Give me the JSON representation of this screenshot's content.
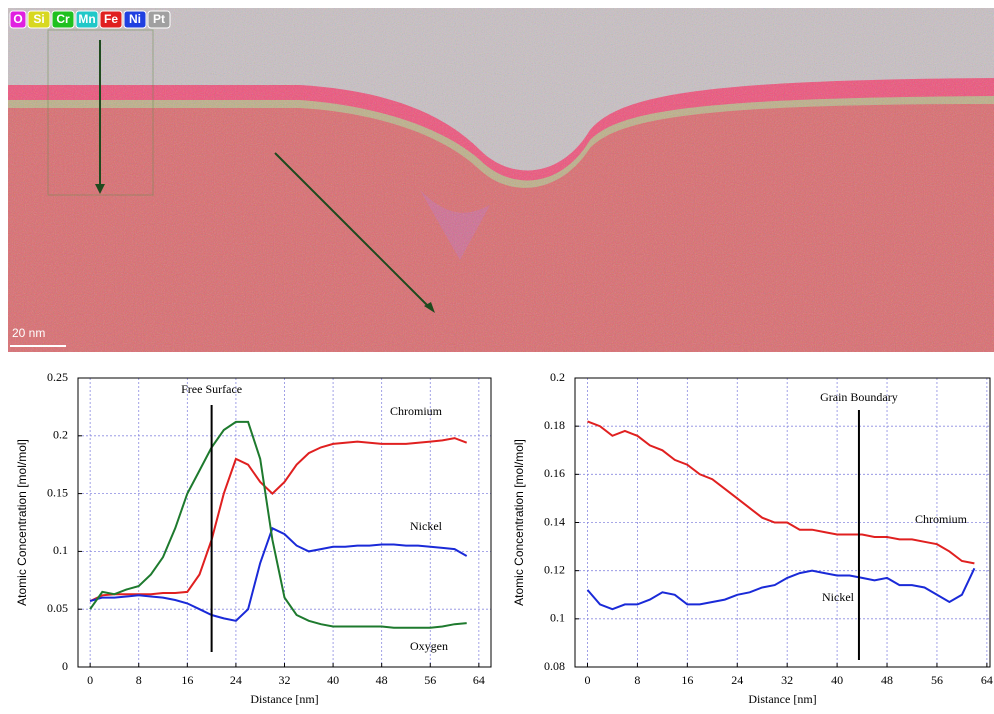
{
  "map": {
    "legend": [
      {
        "name": "O",
        "color": "#e020e0"
      },
      {
        "name": "Si",
        "color": "#d8d820"
      },
      {
        "name": "Cr",
        "color": "#20c020"
      },
      {
        "name": "Mn",
        "color": "#20c8c8"
      },
      {
        "name": "Fe",
        "color": "#e02020"
      },
      {
        "name": "Ni",
        "color": "#2040e0"
      },
      {
        "name": "Pt",
        "color": "#a0a0a0"
      }
    ],
    "scale_bar": "20 nm"
  },
  "chart_data": [
    {
      "type": "line",
      "xlabel": "Distance [nm]",
      "ylabel": "Atomic Concentration [mol/mol]",
      "annotations": [
        {
          "text": "Free Surface",
          "x": 20
        }
      ],
      "x": [
        0,
        2,
        4,
        6,
        8,
        10,
        12,
        14,
        16,
        18,
        20,
        22,
        24,
        26,
        28,
        30,
        32,
        34,
        36,
        38,
        40,
        42,
        44,
        46,
        48,
        50,
        52,
        54,
        56,
        58,
        60,
        62
      ],
      "series": [
        {
          "name": "Chromium",
          "color": "#e02020",
          "values": [
            0.057,
            0.062,
            0.063,
            0.063,
            0.063,
            0.063,
            0.064,
            0.064,
            0.065,
            0.08,
            0.11,
            0.15,
            0.18,
            0.175,
            0.16,
            0.15,
            0.16,
            0.175,
            0.185,
            0.19,
            0.193,
            0.194,
            0.195,
            0.194,
            0.193,
            0.193,
            0.193,
            0.194,
            0.195,
            0.196,
            0.198,
            0.194
          ]
        },
        {
          "name": "Nickel",
          "color": "#1a2ad8",
          "values": [
            0.057,
            0.06,
            0.06,
            0.061,
            0.062,
            0.061,
            0.06,
            0.058,
            0.055,
            0.05,
            0.045,
            0.042,
            0.04,
            0.05,
            0.09,
            0.12,
            0.115,
            0.105,
            0.1,
            0.102,
            0.104,
            0.104,
            0.105,
            0.105,
            0.106,
            0.106,
            0.105,
            0.105,
            0.104,
            0.103,
            0.102,
            0.096
          ]
        },
        {
          "name": "Oxygen",
          "color": "#1e7a2e",
          "values": [
            0.05,
            0.065,
            0.063,
            0.067,
            0.07,
            0.08,
            0.095,
            0.12,
            0.15,
            0.17,
            0.19,
            0.205,
            0.212,
            0.212,
            0.18,
            0.11,
            0.06,
            0.045,
            0.04,
            0.037,
            0.035,
            0.035,
            0.035,
            0.035,
            0.035,
            0.034,
            0.034,
            0.034,
            0.034,
            0.035,
            0.037,
            0.038
          ]
        }
      ],
      "xlim": [
        -2,
        66
      ],
      "ylim": [
        0,
        0.25
      ],
      "xticks": [
        0,
        8,
        16,
        24,
        32,
        40,
        48,
        56,
        64
      ],
      "yticks": [
        0,
        0.05,
        0.1,
        0.15,
        0.2,
        0.25
      ],
      "grid": true
    },
    {
      "type": "line",
      "xlabel": "Distance [nm]",
      "ylabel": "Atomic Concentration [mol/mol]",
      "annotations": [
        {
          "text": "Grain Boundary",
          "x": 43.5
        }
      ],
      "x": [
        0,
        2,
        4,
        6,
        8,
        10,
        12,
        14,
        16,
        18,
        20,
        22,
        24,
        26,
        28,
        30,
        32,
        34,
        36,
        38,
        40,
        42,
        44,
        46,
        48,
        50,
        52,
        54,
        56,
        58,
        60,
        62
      ],
      "series": [
        {
          "name": "Chromium",
          "color": "#e02020",
          "values": [
            0.182,
            0.18,
            0.176,
            0.178,
            0.176,
            0.172,
            0.17,
            0.166,
            0.164,
            0.16,
            0.158,
            0.154,
            0.15,
            0.146,
            0.142,
            0.14,
            0.14,
            0.137,
            0.137,
            0.136,
            0.135,
            0.135,
            0.135,
            0.134,
            0.134,
            0.133,
            0.133,
            0.132,
            0.131,
            0.128,
            0.124,
            0.123
          ]
        },
        {
          "name": "Nickel",
          "color": "#1a2ad8",
          "values": [
            0.112,
            0.106,
            0.104,
            0.106,
            0.106,
            0.108,
            0.111,
            0.11,
            0.106,
            0.106,
            0.107,
            0.108,
            0.11,
            0.111,
            0.113,
            0.114,
            0.117,
            0.119,
            0.12,
            0.119,
            0.118,
            0.118,
            0.117,
            0.116,
            0.117,
            0.114,
            0.114,
            0.113,
            0.11,
            0.107,
            0.11,
            0.121
          ]
        }
      ],
      "xlim": [
        -2,
        64.5
      ],
      "ylim": [
        0.08,
        0.2
      ],
      "xticks": [
        0,
        8,
        16,
        24,
        32,
        40,
        48,
        56,
        64
      ],
      "yticks": [
        0.08,
        0.1,
        0.12,
        0.14,
        0.16,
        0.18,
        0.2
      ],
      "grid": true
    }
  ]
}
